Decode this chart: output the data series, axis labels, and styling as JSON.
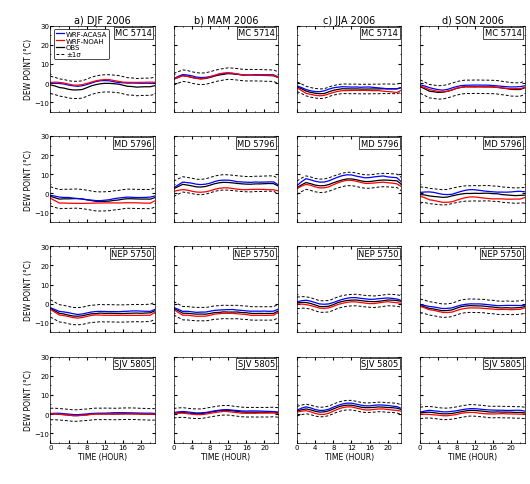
{
  "seasons": [
    "a) DJF 2006",
    "b) MAM 2006",
    "c) JJA 2006",
    "d) SON 2006"
  ],
  "stations": [
    "MC 5714",
    "MD 5796",
    "NEP 5750",
    "SJV 5805"
  ],
  "color_acasa": "#0000FF",
  "color_noah": "#FF0000",
  "color_obs": "#000000",
  "color_std": "#000000",
  "lw_main": 0.9,
  "lw_std": 0.7,
  "legend_fontsize": 5.0,
  "station_fontsize": 6.0,
  "title_fontsize": 7.0,
  "tick_fontsize": 5.0,
  "ylabel_fontsize": 5.5,
  "xlabel_fontsize": 5.5
}
